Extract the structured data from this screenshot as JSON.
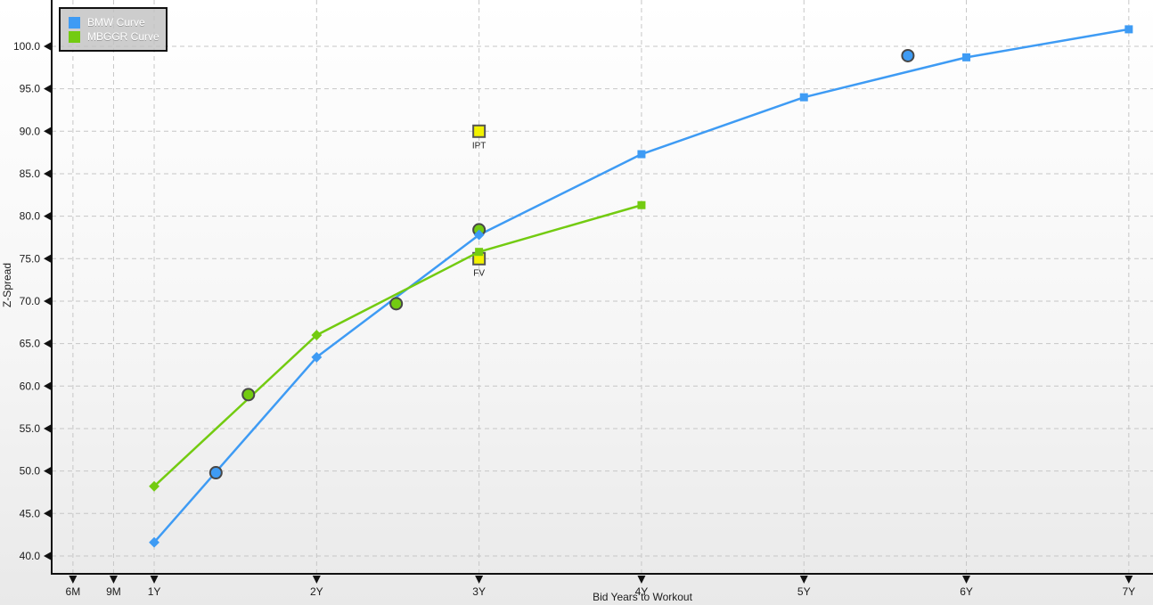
{
  "chart_data": {
    "type": "line",
    "title": "",
    "xlabel": "Bid Years to Workout",
    "ylabel": "Z-Spread",
    "xlim": [
      0.369,
      7.149
    ],
    "ylim": [
      37.9,
      105.45
    ],
    "grid": true,
    "legend_position": "top-left",
    "x_ticks": [
      {
        "label": "6M",
        "value": 0.5
      },
      {
        "label": "9M",
        "value": 0.75
      },
      {
        "label": "1Y",
        "value": 1
      },
      {
        "label": "2Y",
        "value": 2
      },
      {
        "label": "3Y",
        "value": 3
      },
      {
        "label": "4Y",
        "value": 4
      },
      {
        "label": "5Y",
        "value": 5
      },
      {
        "label": "6Y",
        "value": 6
      },
      {
        "label": "7Y",
        "value": 7
      }
    ],
    "y_ticks": [
      {
        "label": "40.0",
        "value": 40
      },
      {
        "label": "45.0",
        "value": 45
      },
      {
        "label": "50.0",
        "value": 50
      },
      {
        "label": "55.0",
        "value": 55
      },
      {
        "label": "60.0",
        "value": 60
      },
      {
        "label": "65.0",
        "value": 65
      },
      {
        "label": "70.0",
        "value": 70
      },
      {
        "label": "75.0",
        "value": 75
      },
      {
        "label": "80.0",
        "value": 80
      },
      {
        "label": "85.0",
        "value": 85
      },
      {
        "label": "90.0",
        "value": 90
      },
      {
        "label": "95.0",
        "value": 95
      },
      {
        "label": "100.0",
        "value": 100
      }
    ],
    "series": [
      {
        "name": "BMW Curve",
        "color": "#3e9bf4",
        "points": [
          {
            "x": 1,
            "y": 41.6,
            "marker": "diamond"
          },
          {
            "x": 2,
            "y": 63.4,
            "marker": "diamond"
          },
          {
            "x": 3,
            "y": 77.8,
            "marker": "diamond"
          },
          {
            "x": 4,
            "y": 87.3,
            "marker": "square"
          },
          {
            "x": 5,
            "y": 94.0,
            "marker": "square"
          },
          {
            "x": 6,
            "y": 98.7,
            "marker": "square"
          },
          {
            "x": 7,
            "y": 102.0,
            "marker": "square"
          }
        ]
      },
      {
        "name": "MBGGR Curve",
        "color": "#73cb11",
        "points": [
          {
            "x": 1,
            "y": 48.2,
            "marker": "diamond"
          },
          {
            "x": 2,
            "y": 66.0,
            "marker": "diamond"
          },
          {
            "x": 3,
            "y": 75.8,
            "marker": "square"
          },
          {
            "x": 4,
            "y": 81.3,
            "marker": "square"
          }
        ]
      }
    ],
    "bond_points": [
      {
        "series": "BMW Curve",
        "x": 1.38,
        "y": 49.8
      },
      {
        "series": "BMW Curve",
        "x": 5.64,
        "y": 98.9
      },
      {
        "series": "MBGGR Curve",
        "x": 1.58,
        "y": 59.0
      },
      {
        "series": "MBGGR Curve",
        "x": 2.49,
        "y": 69.7
      },
      {
        "series": "MBGGR Curve",
        "x": 3.0,
        "y": 78.4
      }
    ],
    "annotations": [
      {
        "label": "IPT",
        "x": 3.0,
        "y": 90.0,
        "marker": "square",
        "fill": "#f2f200"
      },
      {
        "label": "FV",
        "x": 3.0,
        "y": 75.0,
        "marker": "square",
        "fill": "#f2f200"
      }
    ],
    "colors": {
      "grid": "#c6c6c6",
      "axis": "#111111",
      "tick_label": "#1c1c1c",
      "bond_stroke": "#474747",
      "annotation_stroke": "#555555",
      "legend_bg": "#c4c4c4",
      "legend_border": "#111111",
      "legend_text": "#ffffff"
    }
  },
  "legend": {
    "entries": [
      {
        "label": "BMW Curve",
        "color": "#3e9bf4"
      },
      {
        "label": "MBGGR Curve",
        "color": "#73cb11"
      }
    ]
  }
}
